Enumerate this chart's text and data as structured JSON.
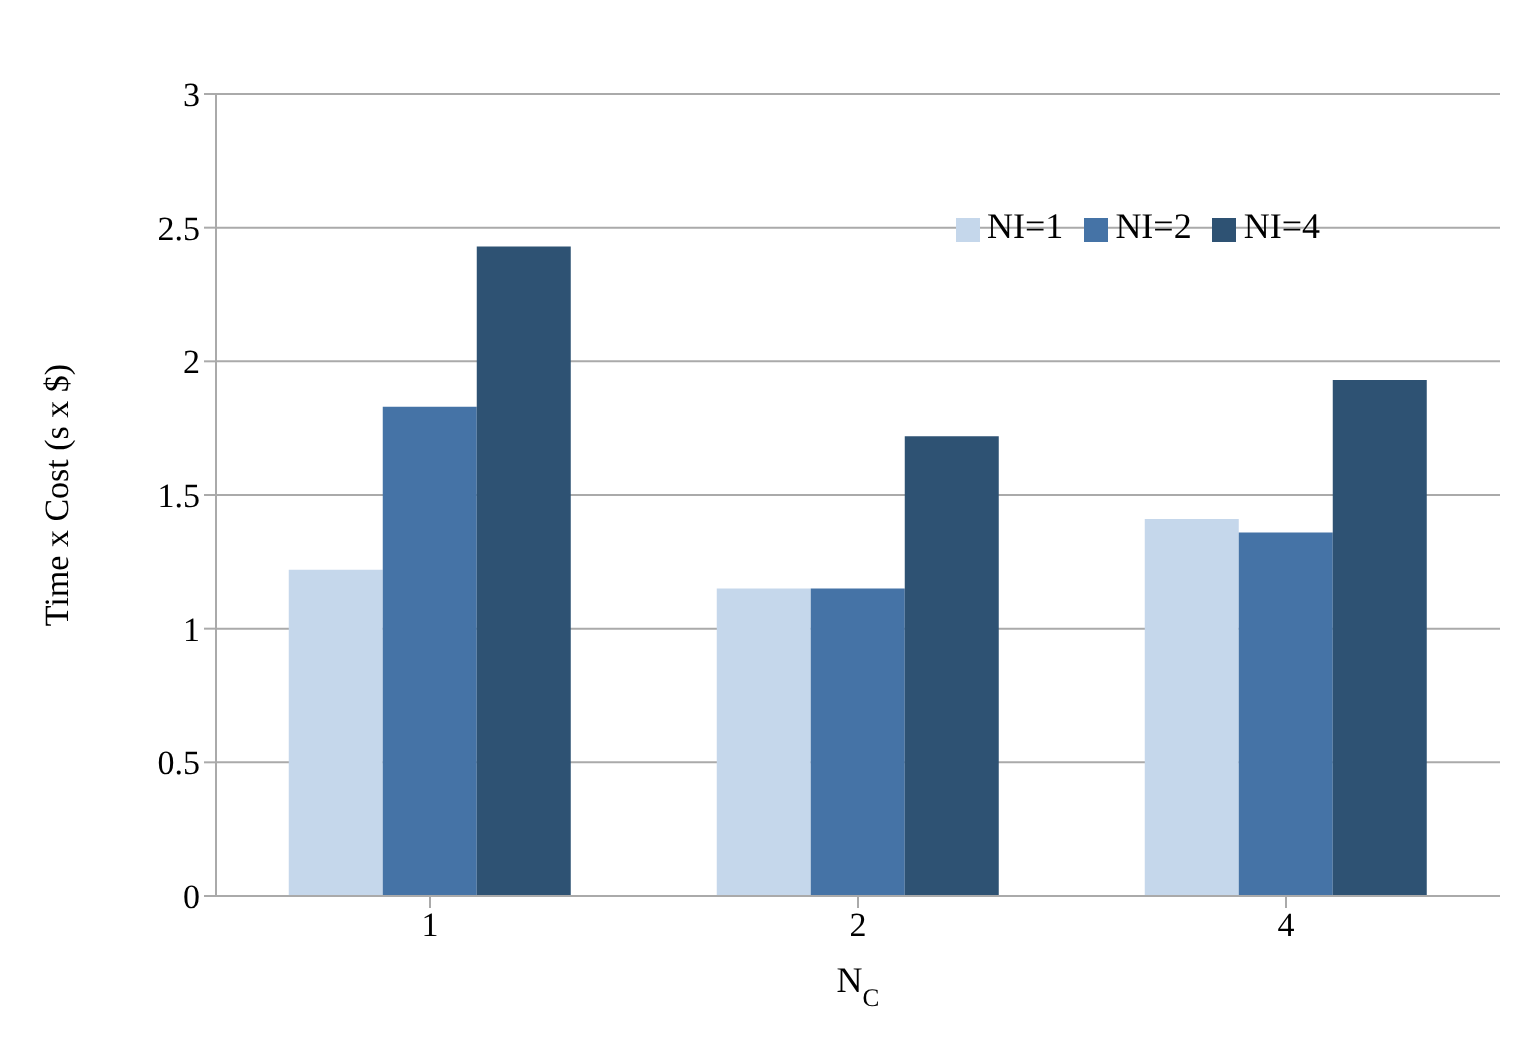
{
  "chart_data": {
    "type": "bar",
    "xlabel": "N$_{C}$",
    "ylabel": "Time x Cost (s x $)",
    "categories": [
      "1",
      "2",
      "4"
    ],
    "series": [
      {
        "name": "NI=1",
        "color": "#c5d7eb",
        "values": [
          1.22,
          1.15,
          1.41
        ]
      },
      {
        "name": "NI=2",
        "color": "#4573a6",
        "values": [
          1.83,
          1.15,
          1.36
        ]
      },
      {
        "name": "NI=4",
        "color": "#2e5273",
        "values": [
          2.43,
          1.72,
          1.93
        ]
      }
    ],
    "ylim": [
      0,
      3
    ],
    "yticks": [
      0,
      0.5,
      1,
      1.5,
      2,
      2.5,
      3
    ],
    "grid": "y",
    "legend": "top right"
  }
}
